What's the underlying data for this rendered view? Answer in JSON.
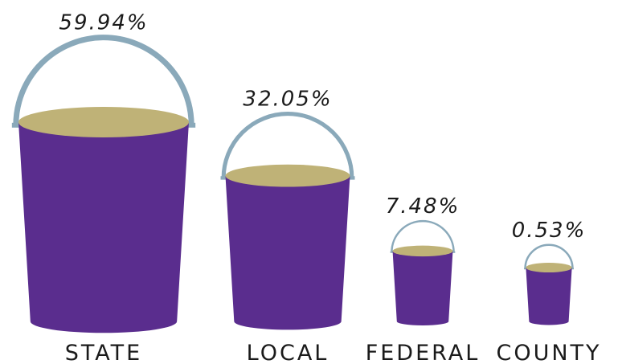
{
  "chart_data": {
    "type": "bar",
    "categories": [
      "STATE",
      "LOCAL",
      "FEDERAL",
      "COUNTY"
    ],
    "values": [
      59.94,
      32.05,
      7.48,
      0.53
    ],
    "value_labels": [
      "59.94%",
      "32.05%",
      "7.48%",
      "0.53%"
    ],
    "title": "",
    "xlabel": "",
    "ylabel": "",
    "style": "bucket pictogram",
    "colors": {
      "bucket_body": "#5a2d8e",
      "bucket_rim": "#bfb277",
      "bucket_handle": "#8aa9ba",
      "text": "#1a1a1a"
    }
  }
}
